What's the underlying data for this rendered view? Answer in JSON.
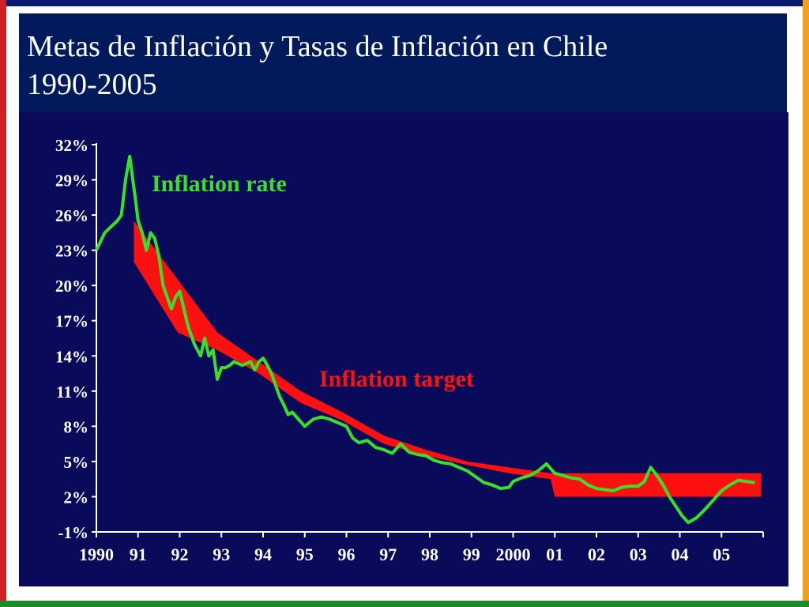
{
  "slide": {
    "title_line1": "Metas de Inflación y Tasas de Inflación en Chile",
    "title_line2": "1990-2005"
  },
  "colors": {
    "title_bg": "#001a5c",
    "chart_bg": "#0a0a5a",
    "inflation_rate": "#38e02a",
    "inflation_target": "#ff1010",
    "text": "#ffffff"
  },
  "chart_data": {
    "type": "line",
    "title": "",
    "xlabel": "",
    "ylabel": "",
    "ylim": [
      -1,
      32
    ],
    "xlim": [
      1990,
      2006
    ],
    "grid": false,
    "y_ticks": [
      "32%",
      "29%",
      "26%",
      "23%",
      "20%",
      "17%",
      "14%",
      "11%",
      "8%",
      "5%",
      "2%",
      "-1%"
    ],
    "x_ticks": [
      "1990",
      "91",
      "92",
      "93",
      "94",
      "95",
      "96",
      "97",
      "98",
      "99",
      "2000",
      "01",
      "02",
      "03",
      "04",
      "05"
    ],
    "annotations": [
      {
        "text": "Inflation rate",
        "series": "Inflation rate"
      },
      {
        "text": "Inflation target",
        "series": "Inflation target"
      }
    ],
    "series": [
      {
        "name": "Inflation rate",
        "type": "line",
        "x": [
          1990.0,
          1990.2,
          1990.35,
          1990.5,
          1990.6,
          1990.7,
          1990.8,
          1990.95,
          1991.0,
          1991.1,
          1991.2,
          1991.3,
          1991.4,
          1991.5,
          1991.6,
          1991.7,
          1991.8,
          1991.9,
          1992.0,
          1992.1,
          1992.2,
          1992.35,
          1992.5,
          1992.6,
          1992.7,
          1992.8,
          1992.9,
          1993.0,
          1993.1,
          1993.2,
          1993.3,
          1993.5,
          1993.7,
          1993.8,
          1993.9,
          1994.0,
          1994.1,
          1994.2,
          1994.3,
          1994.4,
          1994.5,
          1994.6,
          1994.7,
          1994.85,
          1995.0,
          1995.2,
          1995.4,
          1995.6,
          1995.8,
          1996.0,
          1996.15,
          1996.3,
          1996.5,
          1996.7,
          1996.9,
          1997.1,
          1997.3,
          1997.5,
          1997.7,
          1997.9,
          1998.1,
          1998.3,
          1998.5,
          1998.7,
          1998.9,
          1999.1,
          1999.3,
          1999.5,
          1999.7,
          1999.9,
          2000.0,
          2000.2,
          2000.4,
          2000.6,
          2000.8,
          2001.0,
          2001.2,
          2001.4,
          2001.6,
          2001.8,
          2002.0,
          2002.2,
          2002.4,
          2002.6,
          2002.8,
          2003.0,
          2003.15,
          2003.3,
          2003.45,
          2003.6,
          2003.75,
          2003.9,
          2004.05,
          2004.2,
          2004.4,
          2004.6,
          2004.8,
          2005.0,
          2005.2,
          2005.4,
          2005.6,
          2005.8
        ],
        "y": [
          23,
          24.5,
          25,
          25.5,
          26,
          29,
          31,
          27,
          25.5,
          24.5,
          23,
          24.5,
          24,
          22.5,
          20,
          19,
          18,
          19,
          19.5,
          18,
          16.5,
          15,
          14,
          15.5,
          14,
          14.5,
          12,
          13,
          13,
          13.2,
          13.5,
          13.2,
          13.5,
          12.8,
          13.5,
          13.8,
          13.2,
          12.5,
          11.5,
          10.5,
          9.8,
          9.0,
          9.2,
          8.6,
          8.0,
          8.6,
          8.8,
          8.6,
          8.3,
          8.0,
          7.0,
          6.6,
          6.8,
          6.2,
          6.0,
          5.7,
          6.5,
          5.8,
          5.6,
          5.5,
          5.1,
          4.9,
          4.8,
          4.5,
          4.2,
          3.7,
          3.2,
          3.0,
          2.7,
          2.8,
          3.3,
          3.6,
          3.8,
          4.2,
          4.8,
          4.0,
          3.8,
          3.6,
          3.5,
          3.0,
          2.7,
          2.6,
          2.5,
          2.8,
          2.9,
          2.9,
          3.3,
          4.5,
          3.8,
          3.0,
          2.0,
          1.2,
          0.4,
          -0.2,
          0.2,
          0.9,
          1.7,
          2.5,
          3.0,
          3.4,
          3.3,
          3.2
        ]
      },
      {
        "name": "Inflation target",
        "type": "band",
        "x": [
          1990.9,
          1991.95,
          1992.9,
          1993.9,
          1994.9,
          1995.9,
          1996.9,
          1997.9,
          1998.9,
          1999.9,
          2000.9,
          2001.0,
          2001.9,
          2002.9,
          2003.9,
          2004.9,
          2005.95
        ],
        "lower": [
          22,
          16,
          14.5,
          12.5,
          10,
          8.5,
          6.5,
          5.5,
          4.7,
          4.0,
          3.5,
          2.0,
          2.0,
          2.0,
          2.0,
          2.0,
          2.0
        ],
        "upper": [
          25.5,
          20.5,
          16,
          13.5,
          11,
          9.2,
          7.2,
          6.0,
          5.0,
          4.5,
          4.0,
          4.0,
          4.0,
          4.0,
          4.0,
          4.0,
          4.0
        ]
      }
    ]
  }
}
